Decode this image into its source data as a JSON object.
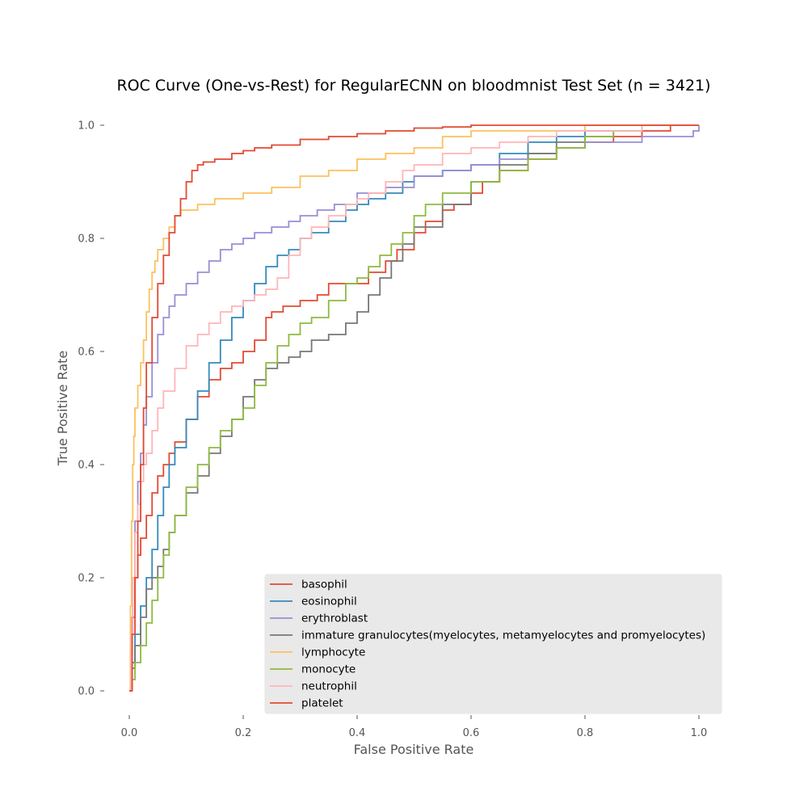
{
  "chart_data": {
    "type": "line",
    "title": "ROC Curve (One-vs-Rest) for RegularECNN on bloodmnist Test Set (n = 3421)",
    "xlabel": "False Positive Rate",
    "ylabel": "True Positive Rate",
    "xlim": [
      0.0,
      1.0
    ],
    "ylim": [
      0.0,
      1.0
    ],
    "x_ticks": [
      "0.0",
      "0.2",
      "0.4",
      "0.6",
      "0.8",
      "1.0"
    ],
    "y_ticks": [
      "0.0",
      "0.2",
      "0.4",
      "0.6",
      "0.8",
      "1.0"
    ],
    "grid": false,
    "legend_position": "lower-right",
    "series": [
      {
        "name": "basophil",
        "color": "#E24A33",
        "x": [
          0.0,
          0.002,
          0.005,
          0.01,
          0.015,
          0.02,
          0.03,
          0.04,
          0.05,
          0.06,
          0.07,
          0.08,
          0.1,
          0.12,
          0.14,
          0.16,
          0.18,
          0.2,
          0.22,
          0.24,
          0.25,
          0.27,
          0.3,
          0.33,
          0.35,
          0.37,
          0.4,
          0.42,
          0.45,
          0.47,
          0.5,
          0.52,
          0.55,
          0.57,
          0.6,
          0.62,
          0.65,
          0.7,
          0.75,
          0.8,
          0.85,
          0.9,
          0.95,
          1.0
        ],
        "y": [
          0.0,
          0.07,
          0.13,
          0.2,
          0.24,
          0.27,
          0.31,
          0.35,
          0.38,
          0.4,
          0.42,
          0.44,
          0.48,
          0.52,
          0.55,
          0.57,
          0.58,
          0.6,
          0.62,
          0.66,
          0.67,
          0.68,
          0.69,
          0.7,
          0.72,
          0.72,
          0.72,
          0.74,
          0.76,
          0.78,
          0.81,
          0.83,
          0.85,
          0.86,
          0.88,
          0.9,
          0.92,
          0.94,
          0.96,
          0.97,
          0.98,
          0.99,
          1.0,
          1.0
        ]
      },
      {
        "name": "eosinophil",
        "color": "#348ABD",
        "x": [
          0.0,
          0.005,
          0.01,
          0.02,
          0.03,
          0.04,
          0.05,
          0.06,
          0.07,
          0.08,
          0.1,
          0.12,
          0.14,
          0.16,
          0.18,
          0.2,
          0.22,
          0.24,
          0.26,
          0.28,
          0.3,
          0.32,
          0.35,
          0.38,
          0.4,
          0.42,
          0.45,
          0.48,
          0.5,
          0.55,
          0.6,
          0.65,
          0.7,
          0.75,
          0.8,
          0.85,
          0.9,
          0.95,
          1.0
        ],
        "y": [
          0.0,
          0.05,
          0.1,
          0.15,
          0.2,
          0.25,
          0.31,
          0.36,
          0.4,
          0.43,
          0.48,
          0.53,
          0.58,
          0.62,
          0.66,
          0.69,
          0.72,
          0.75,
          0.77,
          0.78,
          0.8,
          0.81,
          0.83,
          0.85,
          0.86,
          0.87,
          0.88,
          0.9,
          0.91,
          0.92,
          0.93,
          0.95,
          0.97,
          0.98,
          0.99,
          0.99,
          1.0,
          1.0,
          1.0
        ]
      },
      {
        "name": "erythroblast",
        "color": "#988ED5",
        "x": [
          0.0,
          0.003,
          0.006,
          0.01,
          0.015,
          0.02,
          0.025,
          0.03,
          0.04,
          0.05,
          0.06,
          0.07,
          0.08,
          0.1,
          0.12,
          0.14,
          0.16,
          0.18,
          0.2,
          0.22,
          0.25,
          0.28,
          0.3,
          0.33,
          0.36,
          0.4,
          0.45,
          0.5,
          0.55,
          0.6,
          0.65,
          0.7,
          0.75,
          0.8,
          0.85,
          0.9,
          0.95,
          0.99,
          1.0
        ],
        "y": [
          0.0,
          0.1,
          0.2,
          0.3,
          0.37,
          0.42,
          0.47,
          0.52,
          0.58,
          0.63,
          0.66,
          0.68,
          0.7,
          0.72,
          0.74,
          0.76,
          0.78,
          0.79,
          0.8,
          0.81,
          0.82,
          0.83,
          0.84,
          0.85,
          0.86,
          0.88,
          0.89,
          0.91,
          0.92,
          0.93,
          0.94,
          0.95,
          0.96,
          0.97,
          0.97,
          0.98,
          0.98,
          0.99,
          1.0
        ]
      },
      {
        "name": "immature granulocytes(myelocytes, metamyelocytes and promyelocytes)",
        "color": "#777777",
        "x": [
          0.0,
          0.005,
          0.01,
          0.02,
          0.03,
          0.04,
          0.05,
          0.06,
          0.07,
          0.08,
          0.1,
          0.12,
          0.14,
          0.16,
          0.18,
          0.2,
          0.22,
          0.24,
          0.26,
          0.28,
          0.3,
          0.32,
          0.35,
          0.38,
          0.4,
          0.42,
          0.44,
          0.46,
          0.48,
          0.5,
          0.55,
          0.6,
          0.65,
          0.7,
          0.75,
          0.8,
          0.85,
          0.9,
          0.95,
          1.0
        ],
        "y": [
          0.0,
          0.04,
          0.08,
          0.13,
          0.18,
          0.2,
          0.22,
          0.25,
          0.28,
          0.31,
          0.35,
          0.38,
          0.42,
          0.45,
          0.48,
          0.52,
          0.55,
          0.57,
          0.58,
          0.59,
          0.6,
          0.62,
          0.63,
          0.65,
          0.67,
          0.7,
          0.73,
          0.76,
          0.79,
          0.82,
          0.86,
          0.9,
          0.93,
          0.95,
          0.97,
          0.98,
          0.99,
          1.0,
          1.0,
          1.0
        ]
      },
      {
        "name": "lymphocyte",
        "color": "#FBC15E",
        "x": [
          0.0,
          0.002,
          0.004,
          0.006,
          0.008,
          0.01,
          0.015,
          0.02,
          0.025,
          0.03,
          0.035,
          0.04,
          0.045,
          0.05,
          0.06,
          0.07,
          0.08,
          0.09,
          0.1,
          0.12,
          0.15,
          0.2,
          0.25,
          0.3,
          0.35,
          0.4,
          0.45,
          0.5,
          0.55,
          0.6,
          0.7,
          0.8,
          0.9,
          1.0
        ],
        "y": [
          0.0,
          0.15,
          0.3,
          0.4,
          0.45,
          0.5,
          0.54,
          0.58,
          0.62,
          0.67,
          0.71,
          0.74,
          0.76,
          0.78,
          0.8,
          0.82,
          0.84,
          0.85,
          0.85,
          0.86,
          0.87,
          0.88,
          0.89,
          0.91,
          0.92,
          0.94,
          0.95,
          0.96,
          0.98,
          0.99,
          0.99,
          1.0,
          1.0,
          1.0
        ]
      },
      {
        "name": "monocyte",
        "color": "#8EBA42",
        "x": [
          0.0,
          0.005,
          0.01,
          0.02,
          0.03,
          0.04,
          0.05,
          0.06,
          0.07,
          0.08,
          0.1,
          0.12,
          0.14,
          0.16,
          0.18,
          0.2,
          0.22,
          0.24,
          0.26,
          0.28,
          0.3,
          0.32,
          0.35,
          0.38,
          0.4,
          0.42,
          0.44,
          0.46,
          0.48,
          0.5,
          0.52,
          0.55,
          0.6,
          0.65,
          0.7,
          0.75,
          0.8,
          0.85,
          0.9,
          0.95,
          1.0
        ],
        "y": [
          0.0,
          0.02,
          0.05,
          0.08,
          0.12,
          0.16,
          0.2,
          0.24,
          0.28,
          0.31,
          0.36,
          0.4,
          0.43,
          0.46,
          0.48,
          0.5,
          0.54,
          0.58,
          0.61,
          0.63,
          0.65,
          0.66,
          0.69,
          0.72,
          0.73,
          0.75,
          0.77,
          0.79,
          0.81,
          0.84,
          0.86,
          0.88,
          0.9,
          0.92,
          0.94,
          0.96,
          0.98,
          0.99,
          1.0,
          1.0,
          1.0
        ]
      },
      {
        "name": "neutrophil",
        "color": "#FFB5B8",
        "x": [
          0.0,
          0.003,
          0.006,
          0.01,
          0.015,
          0.02,
          0.025,
          0.03,
          0.04,
          0.05,
          0.06,
          0.08,
          0.1,
          0.12,
          0.14,
          0.16,
          0.18,
          0.2,
          0.22,
          0.24,
          0.26,
          0.28,
          0.3,
          0.32,
          0.35,
          0.38,
          0.4,
          0.42,
          0.45,
          0.48,
          0.5,
          0.55,
          0.6,
          0.65,
          0.7,
          0.75,
          0.8,
          0.9,
          1.0
        ],
        "y": [
          0.0,
          0.1,
          0.2,
          0.28,
          0.33,
          0.37,
          0.4,
          0.42,
          0.46,
          0.5,
          0.53,
          0.57,
          0.61,
          0.63,
          0.65,
          0.67,
          0.68,
          0.69,
          0.7,
          0.71,
          0.73,
          0.77,
          0.8,
          0.82,
          0.84,
          0.86,
          0.87,
          0.88,
          0.9,
          0.92,
          0.93,
          0.95,
          0.96,
          0.97,
          0.98,
          0.99,
          0.99,
          1.0,
          1.0
        ]
      },
      {
        "name": "platelet",
        "color": "#E24A33",
        "x": [
          0.0,
          0.005,
          0.01,
          0.015,
          0.02,
          0.025,
          0.03,
          0.04,
          0.05,
          0.06,
          0.07,
          0.08,
          0.09,
          0.1,
          0.11,
          0.12,
          0.13,
          0.15,
          0.18,
          0.2,
          0.22,
          0.25,
          0.3,
          0.35,
          0.4,
          0.45,
          0.5,
          0.55,
          0.6,
          0.7,
          0.8,
          0.9,
          1.0
        ],
        "y": [
          0.0,
          0.1,
          0.2,
          0.3,
          0.4,
          0.5,
          0.58,
          0.66,
          0.72,
          0.77,
          0.81,
          0.84,
          0.87,
          0.9,
          0.92,
          0.93,
          0.935,
          0.94,
          0.95,
          0.955,
          0.96,
          0.965,
          0.975,
          0.98,
          0.985,
          0.99,
          0.995,
          0.997,
          1.0,
          1.0,
          1.0,
          1.0,
          1.0
        ]
      }
    ]
  }
}
